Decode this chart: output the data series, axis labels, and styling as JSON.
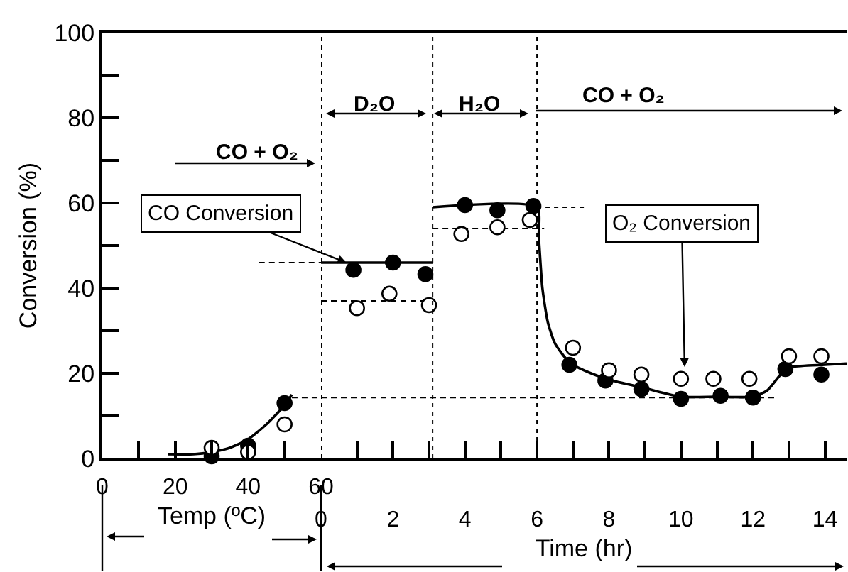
{
  "chart_data": [
    {
      "type": "scatter",
      "xlabel": "Temp (ºC)",
      "ylabel": "Conversion (%)",
      "xlim": [
        0,
        60
      ],
      "ylim": [
        0,
        100
      ],
      "xticks": [
        0,
        {
          "value": 10,
          "label": null
        },
        20,
        {
          "value": 30,
          "label": null
        },
        40,
        {
          "value": 50,
          "label": null
        },
        60
      ],
      "yticks": [
        0,
        {
          "value": 10,
          "label": null
        },
        20,
        {
          "value": 30,
          "label": null
        },
        40,
        {
          "value": 50,
          "label": null
        },
        60,
        {
          "value": 70,
          "label": null
        },
        80,
        {
          "value": 90,
          "label": null
        },
        100
      ],
      "marker": "circle",
      "annotations": [
        "CO + O₂"
      ],
      "series": [
        {
          "type": "line",
          "marker": "none",
          "color": "#000000",
          "x": [
            18,
            25,
            30,
            35,
            40,
            45,
            50,
            52
          ],
          "values": [
            1,
            1,
            1.5,
            2.5,
            4.5,
            8,
            12.5,
            15
          ]
        },
        {
          "type": "line",
          "marker": "none",
          "line_style": "dashed",
          "color": "#000000",
          "x": [
            52,
            60
          ],
          "values": [
            14.3,
            14.3
          ]
        },
        {
          "type": "line",
          "marker": "none",
          "line_style": "dashed",
          "color": "#000000",
          "x": [
            43,
            60
          ],
          "values": [
            46,
            46
          ]
        },
        {
          "color": "#000000",
          "x": [
            30,
            40,
            50
          ],
          "values": [
            0.5,
            3,
            13
          ]
        },
        {
          "color": "#ffffff",
          "x": [
            30,
            40,
            50
          ],
          "values": [
            2.5,
            1.5,
            8
          ]
        }
      ]
    },
    {
      "type": "scatter",
      "xlabel": "Time (hr)",
      "xlim": [
        0,
        14.6
      ],
      "ylim": [
        0,
        100
      ],
      "tick_labels": "x",
      "xticks": [
        0,
        {
          "value": 1,
          "label": null
        },
        2,
        {
          "value": 3,
          "label": null
        },
        4,
        {
          "value": 5,
          "label": null
        },
        6,
        {
          "value": 7,
          "label": null
        },
        8,
        {
          "value": 9,
          "label": null
        },
        10,
        {
          "value": 11,
          "label": null
        },
        12,
        {
          "value": 13,
          "label": null
        },
        14
      ],
      "marker": "circle",
      "ref_lines": [
        {
          "axis": "x",
          "value": 0,
          "line_style": "dotted"
        },
        {
          "axis": "x",
          "value": 3.1,
          "line_style": "dotted"
        },
        {
          "axis": "x",
          "value": 6,
          "line_style": "dotted"
        }
      ],
      "annotations": [
        "D₂O",
        "H₂O",
        "CO + O₂",
        {
          "text": "CO Conversion",
          "x": 0.7,
          "y": 46
        },
        {
          "text": "O₂ Conversion",
          "x": 10.1,
          "y": 21.5
        }
      ],
      "series": [
        {
          "type": "line",
          "marker": "none",
          "color": "#000000",
          "x": [
            0,
            3.1
          ],
          "values": [
            46,
            46
          ]
        },
        {
          "type": "line",
          "marker": "none",
          "color": "#000000",
          "x": [
            3.1,
            6,
            6.05,
            6.15,
            6.3,
            6.5,
            6.8,
            7,
            7.5,
            8,
            9,
            10,
            11,
            12,
            12.4,
            12.8,
            13.1,
            14,
            14.6
          ],
          "values": [
            59,
            59,
            52,
            40,
            32,
            27,
            23.5,
            22,
            20,
            18.5,
            16.5,
            14.5,
            14.5,
            14.5,
            16,
            20,
            21.5,
            22,
            22.3
          ]
        },
        {
          "type": "line",
          "marker": "none",
          "line_style": "dashed",
          "color": "#000000",
          "x": [
            0,
            12.7
          ],
          "values": [
            14.3,
            14.3
          ]
        },
        {
          "type": "line",
          "marker": "none",
          "line_style": "dashed",
          "color": "#000000",
          "x": [
            0,
            3.1
          ],
          "values": [
            37,
            37
          ]
        },
        {
          "type": "line",
          "marker": "none",
          "line_style": "dashed",
          "color": "#000000",
          "x": [
            3.1,
            6.2
          ],
          "values": [
            54,
            54
          ]
        },
        {
          "type": "line",
          "marker": "none",
          "line_style": "dotted",
          "color": "#000000",
          "x": [
            6,
            7.4
          ],
          "values": [
            59,
            59
          ]
        },
        {
          "color": "#000000",
          "x": [
            0.9,
            2.0,
            2.9,
            4.0,
            4.9,
            5.9,
            6.9,
            7.9,
            8.9,
            10.0,
            11.1,
            12.0,
            12.9,
            13.9
          ],
          "values": [
            44.3,
            46,
            43.3,
            59.5,
            58.3,
            59.3,
            22,
            18.3,
            16.3,
            14,
            14.7,
            14.3,
            21,
            19.7
          ]
        },
        {
          "color": "#ffffff",
          "x": [
            1.0,
            1.9,
            3.0,
            3.9,
            4.9,
            5.8,
            7.0,
            8.0,
            8.9,
            10.0,
            10.9,
            11.9,
            13.0,
            13.9
          ],
          "values": [
            35.3,
            38.7,
            36,
            52.7,
            54.3,
            56,
            26,
            20.7,
            19.7,
            18.7,
            18.7,
            18.7,
            24,
            24
          ]
        }
      ]
    }
  ]
}
